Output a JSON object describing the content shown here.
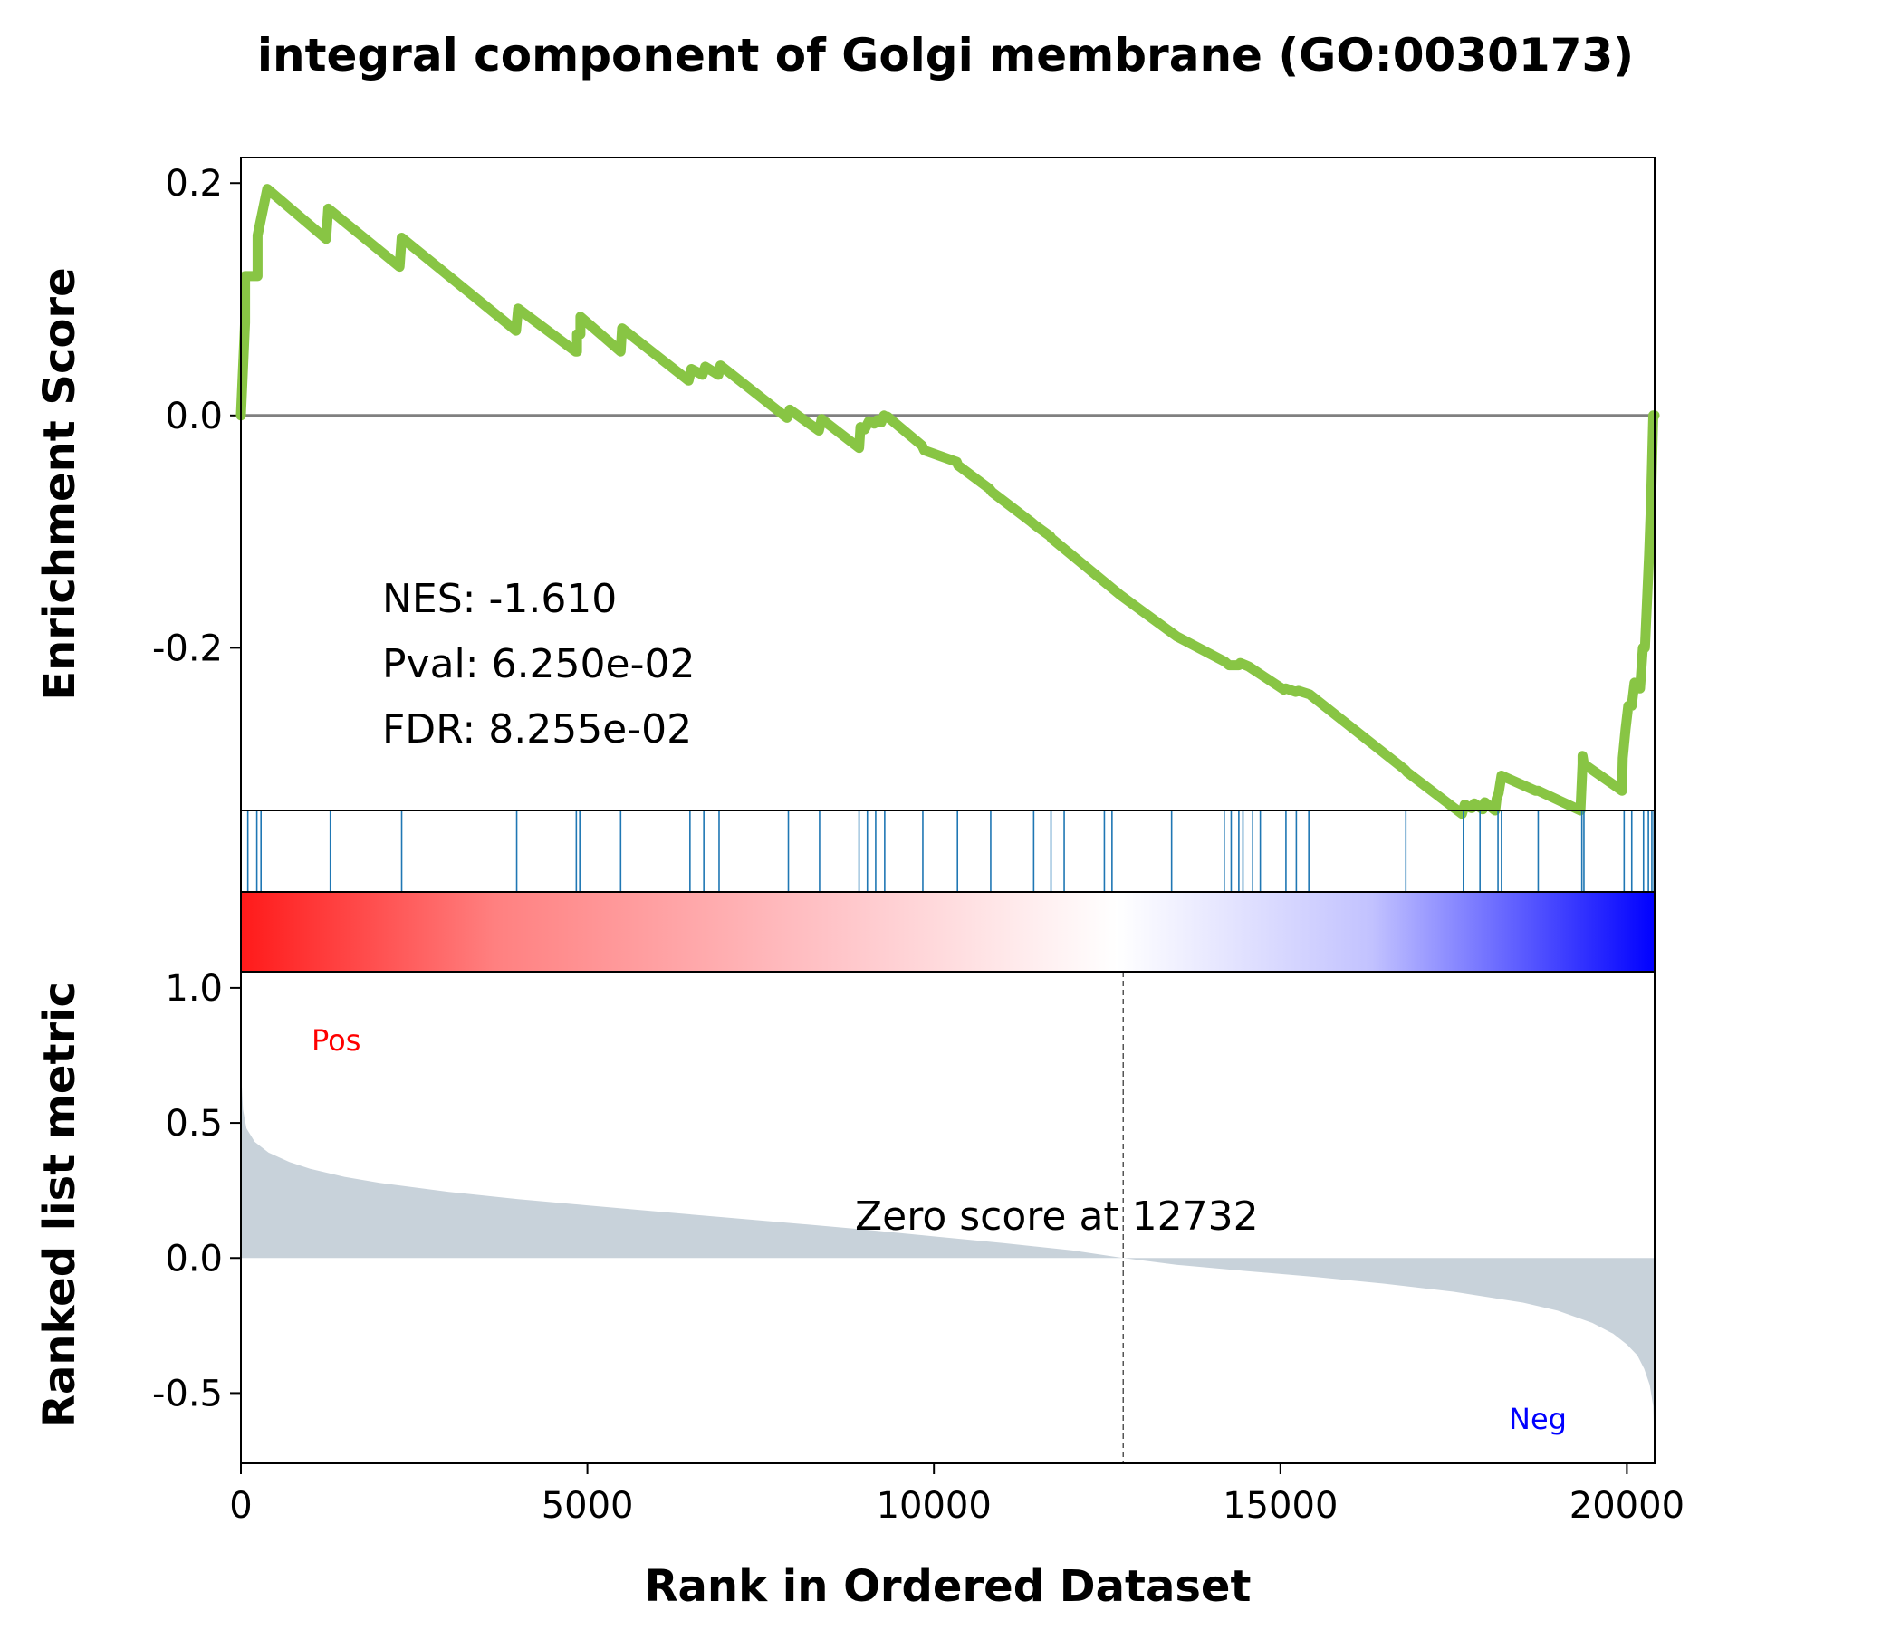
{
  "chart_data": {
    "type": "line",
    "title": "integral component of Golgi membrane (GO:0030173)",
    "colors": {
      "es_line": "#88c544",
      "hit_lines": "#1f77b4",
      "metric_fill": "#c8d2da",
      "zero_line": "#808080",
      "pos": "#ff0000",
      "neg": "#0000ff"
    },
    "x_axis": {
      "label": "Rank in Ordered Dataset",
      "range": [
        0,
        20400
      ],
      "ticks": [
        0,
        5000,
        10000,
        15000,
        20000
      ],
      "tick_labels": [
        "0",
        "5000",
        "10000",
        "15000",
        "20000"
      ]
    },
    "enrichment_panel": {
      "ylabel": "Enrichment Score",
      "ylim": [
        -0.34,
        0.222
      ],
      "ticks": [
        0.2,
        0.0,
        -0.2
      ],
      "tick_labels": [
        "0.2",
        "0.0",
        "-0.2"
      ],
      "stats": {
        "nes": "NES: -1.610",
        "pval": "Pval: 6.250e-02",
        "fdr": "FDR: 8.255e-02"
      },
      "running_es": {
        "x": [
          0,
          60,
          60,
          240,
          240,
          380,
          380,
          1230,
          1260,
          2290,
          2320,
          3970,
          4000,
          4830,
          4850,
          4850,
          4900,
          4900,
          5480,
          5500,
          6460,
          6500,
          6660,
          6700,
          6890,
          6920,
          7880,
          7920,
          8340,
          8380,
          8920,
          8940,
          9000,
          9060,
          9140,
          9180,
          9240,
          9280,
          9300,
          9330,
          9830,
          9860,
          10330,
          10350,
          10800,
          10840,
          11410,
          11450,
          11680,
          11700,
          12700,
          13500,
          14200,
          14240,
          14260,
          14400,
          14420,
          14500,
          14540,
          15050,
          15080,
          15220,
          15260,
          15420,
          16800,
          16830,
          17620,
          17660,
          17760,
          17800,
          17920,
          17950,
          18100,
          18120,
          18150,
          18190,
          18680,
          18720,
          19330,
          19360,
          19360,
          19380,
          19930,
          19940,
          19980,
          20020,
          20070,
          20110,
          20190,
          20230,
          20260,
          20290,
          20320,
          20350,
          20380,
          20400
        ],
        "y": [
          0.0,
          0.08,
          0.12,
          0.12,
          0.155,
          0.195,
          0.195,
          0.152,
          0.178,
          0.128,
          0.153,
          0.073,
          0.092,
          0.055,
          0.055,
          0.07,
          0.07,
          0.085,
          0.055,
          0.075,
          0.03,
          0.04,
          0.035,
          0.042,
          0.035,
          0.043,
          -0.002,
          0.005,
          -0.013,
          -0.003,
          -0.028,
          -0.01,
          -0.012,
          -0.005,
          -0.007,
          -0.004,
          -0.006,
          0.0,
          -0.002,
          -0.001,
          -0.026,
          -0.03,
          -0.04,
          -0.043,
          -0.063,
          -0.066,
          -0.092,
          -0.094,
          -0.104,
          -0.106,
          -0.155,
          -0.19,
          -0.212,
          -0.214,
          -0.215,
          -0.215,
          -0.213,
          -0.215,
          -0.216,
          -0.236,
          -0.235,
          -0.238,
          -0.237,
          -0.24,
          -0.305,
          -0.307,
          -0.343,
          -0.335,
          -0.338,
          -0.334,
          -0.339,
          -0.333,
          -0.34,
          -0.33,
          -0.325,
          -0.31,
          -0.323,
          -0.323,
          -0.34,
          -0.3,
          -0.293,
          -0.3,
          -0.323,
          -0.295,
          -0.27,
          -0.25,
          -0.25,
          -0.23,
          -0.235,
          -0.2,
          -0.2,
          -0.16,
          -0.12,
          -0.07,
          0.0,
          0.0
        ]
      }
    },
    "hits_panel": {
      "hit_ranks": [
        100,
        230,
        290,
        1290,
        2320,
        3980,
        4840,
        4890,
        5480,
        6480,
        6680,
        6900,
        7900,
        8350,
        8920,
        9040,
        9160,
        9290,
        9840,
        10340,
        10820,
        11440,
        11690,
        11880,
        12460,
        12570,
        13430,
        14190,
        14290,
        14400,
        14460,
        14600,
        14710,
        15080,
        15230,
        15410,
        16810,
        17640,
        17880,
        18140,
        18190,
        18720,
        19350,
        19380,
        19960,
        20070,
        20240,
        20310,
        20360,
        20390
      ]
    },
    "metric_panel": {
      "ylabel": "Ranked list metric",
      "ylim": [
        -0.76,
        1.06
      ],
      "ticks": [
        1.0,
        0.5,
        0.0,
        -0.5
      ],
      "tick_labels": [
        "1.0",
        "0.5",
        "0.0",
        "-0.5"
      ],
      "pos_label": "Pos",
      "neg_label": "Neg",
      "zero_rank": 12732,
      "zero_note": "Zero score at 12732",
      "metric": {
        "x": [
          0,
          30,
          80,
          200,
          400,
          700,
          1000,
          1500,
          2000,
          3000,
          4000,
          5000,
          6000,
          7000,
          8000,
          9000,
          10000,
          11000,
          12000,
          12732,
          13500,
          14500,
          15500,
          16500,
          17500,
          18500,
          19000,
          19500,
          19800,
          20000,
          20150,
          20250,
          20330,
          20380,
          20400
        ],
        "y": [
          0.7,
          0.55,
          0.48,
          0.43,
          0.39,
          0.355,
          0.33,
          0.3,
          0.278,
          0.245,
          0.218,
          0.195,
          0.172,
          0.15,
          0.128,
          0.105,
          0.08,
          0.055,
          0.028,
          0.0,
          -0.025,
          -0.048,
          -0.07,
          -0.095,
          -0.125,
          -0.165,
          -0.195,
          -0.24,
          -0.28,
          -0.32,
          -0.36,
          -0.41,
          -0.47,
          -0.55,
          -0.72
        ]
      }
    }
  }
}
